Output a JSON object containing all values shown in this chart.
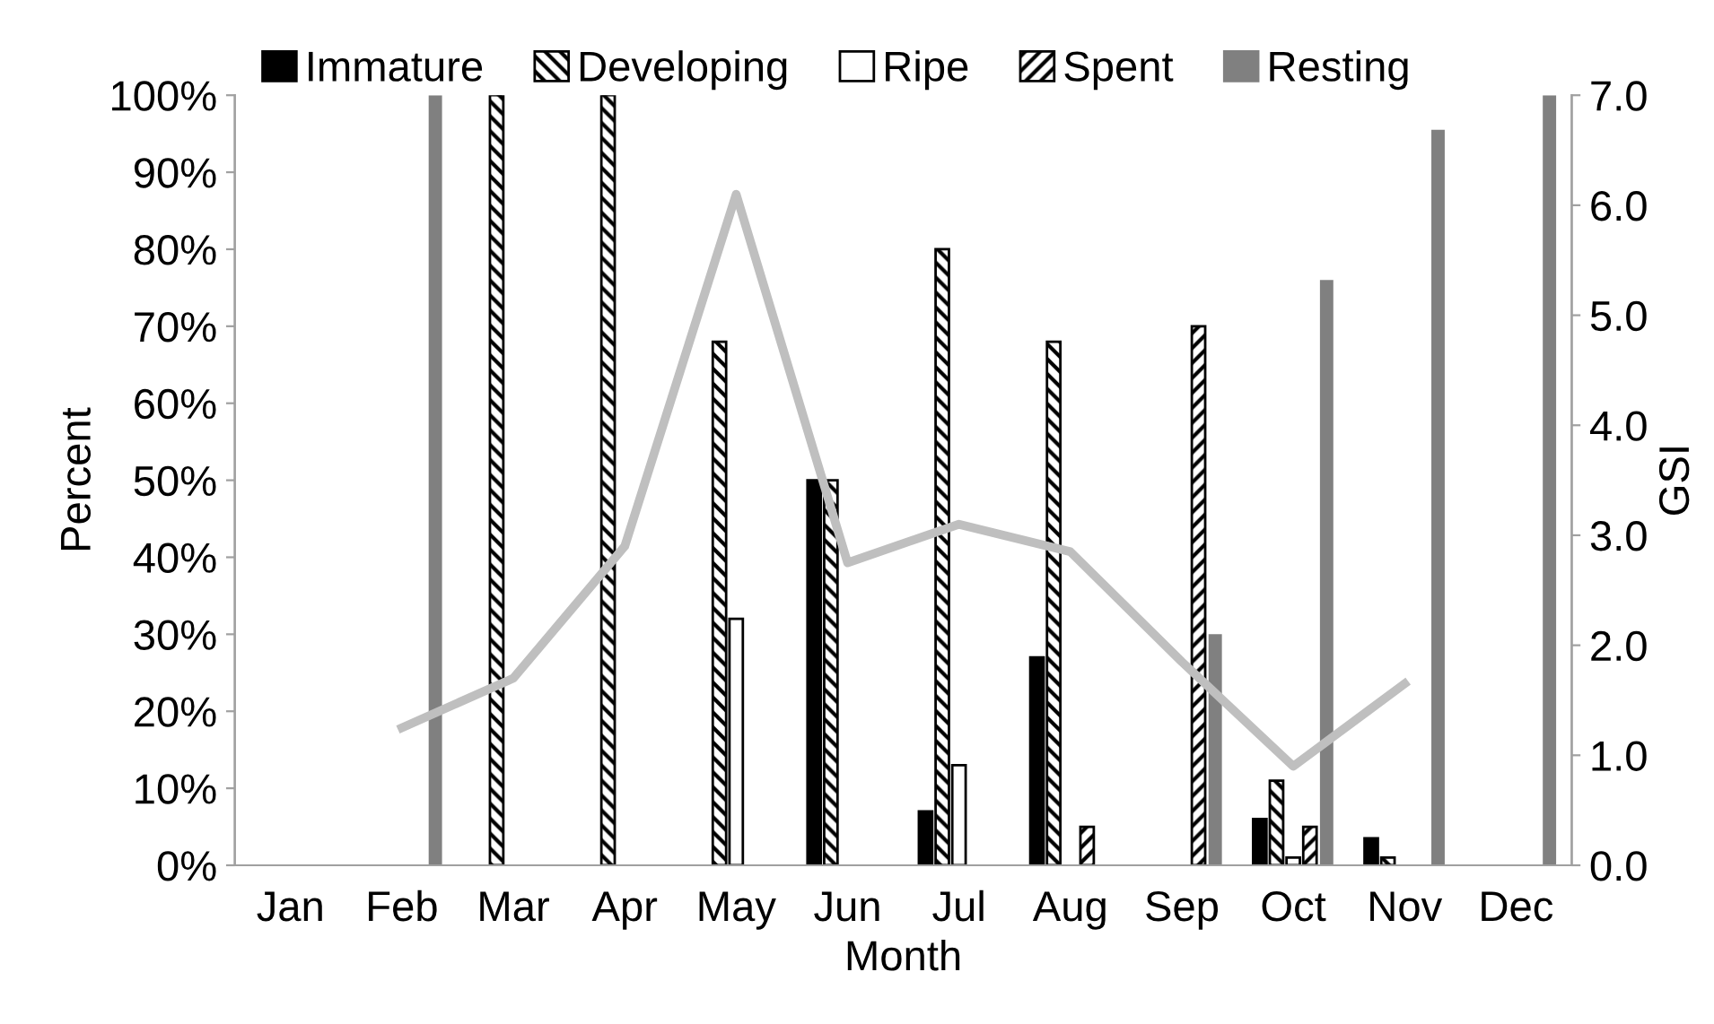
{
  "chart_data": {
    "type": "bar",
    "xlabel": "Month",
    "ylabel": "Percent",
    "y2label": "GSI",
    "categories": [
      "Jan",
      "Feb",
      "Mar",
      "Apr",
      "May",
      "Jun",
      "Jul",
      "Aug",
      "Sep",
      "Oct",
      "Nov",
      "Dec"
    ],
    "series": [
      {
        "name": "Immature",
        "color": "#000000",
        "values": [
          null,
          null,
          null,
          null,
          null,
          50,
          7,
          27,
          null,
          6,
          3.5,
          null
        ]
      },
      {
        "name": "Developing",
        "color": "#000000",
        "values": [
          null,
          null,
          100,
          100,
          68,
          50,
          80,
          68,
          null,
          11,
          1,
          null
        ]
      },
      {
        "name": "Ripe",
        "color": "#ffffff",
        "values": [
          null,
          null,
          null,
          null,
          32,
          null,
          13,
          null,
          null,
          1,
          null,
          null
        ]
      },
      {
        "name": "Spent",
        "color": "#000000",
        "values": [
          null,
          null,
          null,
          null,
          null,
          null,
          null,
          5,
          70,
          5,
          null,
          null
        ]
      },
      {
        "name": "Resting",
        "color": "#808080",
        "values": [
          null,
          100,
          null,
          null,
          null,
          null,
          null,
          null,
          30,
          76,
          95.5,
          100
        ]
      },
      {
        "type": "line",
        "axis": "y2",
        "color": "#bfbfbf",
        "values": [
          null,
          1.25,
          1.7,
          2.9,
          6.1,
          2.75,
          3.1,
          2.85,
          1.85,
          0.9,
          1.65,
          null
        ]
      }
    ],
    "ylim": [
      0,
      100
    ],
    "yticks": [
      {
        "value": 0,
        "label": "0%"
      },
      {
        "value": 10,
        "label": "10%"
      },
      {
        "value": 20,
        "label": "20%"
      },
      {
        "value": 30,
        "label": "30%"
      },
      {
        "value": 40,
        "label": "40%"
      },
      {
        "value": 50,
        "label": "50%"
      },
      {
        "value": 60,
        "label": "60%"
      },
      {
        "value": 70,
        "label": "70%"
      },
      {
        "value": 80,
        "label": "80%"
      },
      {
        "value": 90,
        "label": "90%"
      },
      {
        "value": 100,
        "label": "100%"
      }
    ],
    "y2lim": [
      0,
      7
    ],
    "y2ticks": [
      {
        "value": 0,
        "label": "0.0"
      },
      {
        "value": 1,
        "label": "1.0"
      },
      {
        "value": 2,
        "label": "2.0"
      },
      {
        "value": 3,
        "label": "3.0"
      },
      {
        "value": 4,
        "label": "4.0"
      },
      {
        "value": 5,
        "label": "5.0"
      },
      {
        "value": 6,
        "label": "6.0"
      },
      {
        "value": 7,
        "label": "7.0"
      }
    ],
    "legend": "top",
    "grid": false
  }
}
